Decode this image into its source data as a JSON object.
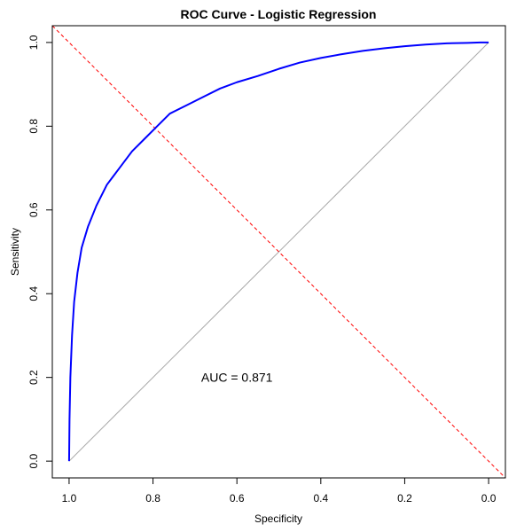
{
  "chart_data": {
    "type": "line",
    "title": "ROC Curve - Logistic Regression",
    "xlabel": "Specificity",
    "ylabel": "Sensitivity",
    "x_reversed": true,
    "xlim": [
      1.04,
      -0.04
    ],
    "ylim": [
      -0.04,
      1.04
    ],
    "xticks": [
      1.0,
      0.8,
      0.6,
      0.4,
      0.2,
      0.0
    ],
    "xtick_labels": [
      "1.0",
      "0.8",
      "0.6",
      "0.4",
      "0.2",
      "0.0"
    ],
    "yticks": [
      0.0,
      0.2,
      0.4,
      0.6,
      0.8,
      1.0
    ],
    "ytick_labels": [
      "0.0",
      "0.2",
      "0.4",
      "0.6",
      "0.8",
      "1.0"
    ],
    "grid": false,
    "annotation": "AUC = 0.871",
    "annotation_x": 0.6,
    "annotation_y": 0.2,
    "series": [
      {
        "color": "#0000ff",
        "style": "solid",
        "specificity": [
          1.0,
          0.999,
          0.997,
          0.993,
          0.988,
          0.98,
          0.97,
          0.955,
          0.935,
          0.91,
          0.88,
          0.85,
          0.82,
          0.79,
          0.76,
          0.72,
          0.68,
          0.64,
          0.6,
          0.55,
          0.5,
          0.45,
          0.4,
          0.35,
          0.3,
          0.25,
          0.2,
          0.15,
          0.1,
          0.05,
          0.02,
          0.0
        ],
        "sensitivity": [
          0.0,
          0.1,
          0.2,
          0.3,
          0.38,
          0.45,
          0.51,
          0.56,
          0.61,
          0.66,
          0.7,
          0.74,
          0.77,
          0.8,
          0.83,
          0.85,
          0.87,
          0.89,
          0.905,
          0.92,
          0.937,
          0.952,
          0.963,
          0.972,
          0.98,
          0.986,
          0.991,
          0.995,
          0.998,
          0.999,
          1.0,
          1.0
        ]
      },
      {
        "color": "#aaaaaa",
        "style": "solid",
        "specificity": [
          1.0,
          0.0
        ],
        "sensitivity": [
          0.0,
          1.0
        ]
      },
      {
        "color": "#ff0000",
        "style": "dashed",
        "specificity": [
          1.04,
          -0.04
        ],
        "sensitivity": [
          1.04,
          -0.04
        ]
      }
    ]
  }
}
